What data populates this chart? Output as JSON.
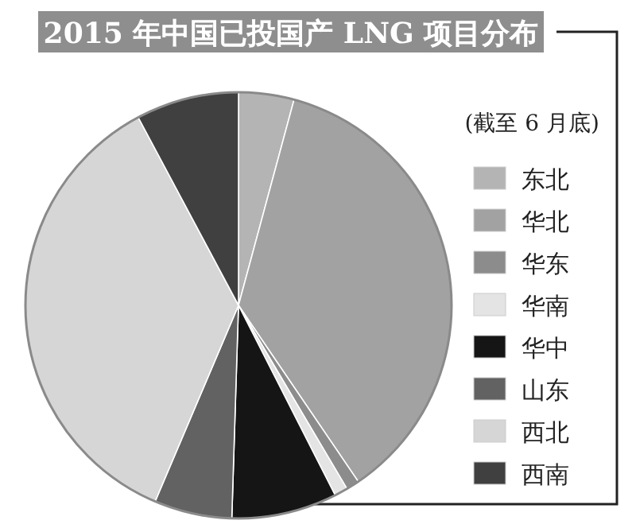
{
  "chart_data": {
    "type": "pie",
    "title": "2015 年中国已投国产 LNG 项目分布",
    "subtitle": "(截至 6 月底)",
    "categories": [
      "东北",
      "华北",
      "华东",
      "华南",
      "华中",
      "山东",
      "西北",
      "西南"
    ],
    "values": [
      4.2,
      36.3,
      1,
      1,
      8,
      5.9,
      35.8,
      7.8
    ],
    "colors": [
      "#b4b4b4",
      "#a2a2a2",
      "#8c8c8c",
      "#e4e4e4",
      "#151515",
      "#626262",
      "#d6d6d6",
      "#404040"
    ],
    "legend": "right"
  }
}
